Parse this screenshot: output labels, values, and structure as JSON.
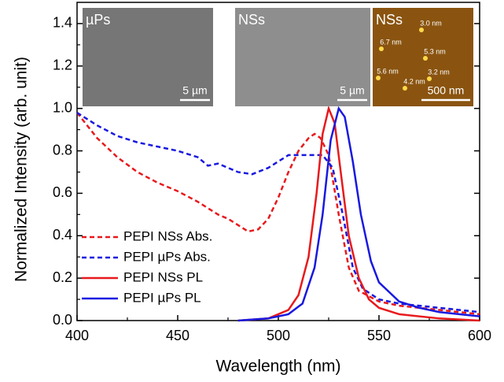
{
  "chart_data": {
    "type": "line",
    "x_label": "Wavelength (nm)",
    "y_label": "Normalized Intensity (arb. unit)",
    "xlim": [
      400,
      600
    ],
    "xticks": [
      400,
      450,
      500,
      550,
      600
    ],
    "ylim": [
      0,
      1.5
    ],
    "yticks": [
      {
        "value": 0,
        "label": "0.0"
      },
      0.2,
      0.4,
      0.6,
      0.8,
      {
        "value": 1,
        "label": "1.0"
      },
      1.2,
      1.4
    ],
    "legend": "lower-left",
    "series": [
      {
        "name": "PEPI NSs Abs.",
        "color": "#e8191c",
        "style": "dashed",
        "x": [
          400,
          410,
          420,
          430,
          440,
          450,
          460,
          470,
          475,
          480,
          485,
          490,
          495,
          500,
          505,
          510,
          515,
          518,
          521,
          525,
          530,
          535,
          540,
          550,
          560,
          580,
          600
        ],
        "values": [
          0.98,
          0.86,
          0.77,
          0.7,
          0.65,
          0.61,
          0.56,
          0.5,
          0.48,
          0.45,
          0.42,
          0.43,
          0.48,
          0.58,
          0.7,
          0.8,
          0.86,
          0.88,
          0.86,
          0.78,
          0.5,
          0.25,
          0.14,
          0.09,
          0.07,
          0.05,
          0.03
        ]
      },
      {
        "name": "PEPI µPs Abs.",
        "color": "#1919e0",
        "style": "dashed",
        "x": [
          400,
          410,
          420,
          430,
          440,
          450,
          460,
          465,
          470,
          475,
          480,
          487,
          495,
          500,
          505,
          515,
          522,
          527,
          532,
          537,
          542,
          550,
          560,
          580,
          600
        ],
        "values": [
          0.98,
          0.92,
          0.87,
          0.84,
          0.82,
          0.8,
          0.77,
          0.73,
          0.74,
          0.72,
          0.7,
          0.69,
          0.72,
          0.75,
          0.78,
          0.78,
          0.78,
          0.72,
          0.5,
          0.25,
          0.15,
          0.1,
          0.08,
          0.06,
          0.04
        ]
      },
      {
        "name": "PEPI NSs PL",
        "color": "#e8191c",
        "style": "solid",
        "x": [
          480,
          495,
          505,
          510,
          515,
          519,
          522,
          525,
          528,
          531,
          535,
          540,
          545,
          550,
          560,
          580,
          600
        ],
        "values": [
          0,
          0.01,
          0.05,
          0.12,
          0.3,
          0.6,
          0.88,
          1.0,
          0.93,
          0.7,
          0.4,
          0.2,
          0.1,
          0.06,
          0.03,
          0.01,
          0
        ]
      },
      {
        "name": "PEPI µPs PL",
        "color": "#1919e0",
        "style": "solid",
        "x": [
          480,
          495,
          505,
          512,
          518,
          522,
          526,
          530,
          533,
          537,
          541,
          546,
          550,
          560,
          570,
          580,
          600
        ],
        "values": [
          0,
          0.01,
          0.03,
          0.08,
          0.25,
          0.5,
          0.85,
          1.0,
          0.96,
          0.75,
          0.5,
          0.28,
          0.18,
          0.09,
          0.06,
          0.04,
          0.02
        ]
      }
    ],
    "insets": [
      {
        "label": "µPs",
        "scale_bar": "5 µm",
        "color": "#767676"
      },
      {
        "label": "NSs",
        "scale_bar": "5 µm",
        "color": "#8e8e8e"
      },
      {
        "label": "NSs",
        "scale_bar": "500 nm",
        "color": "#8a5410",
        "annotations": [
          "3.0 nm",
          "6.7 nm",
          "5.3 nm",
          "5.6 nm",
          "3.2 nm",
          "4.2 nm"
        ]
      }
    ]
  }
}
